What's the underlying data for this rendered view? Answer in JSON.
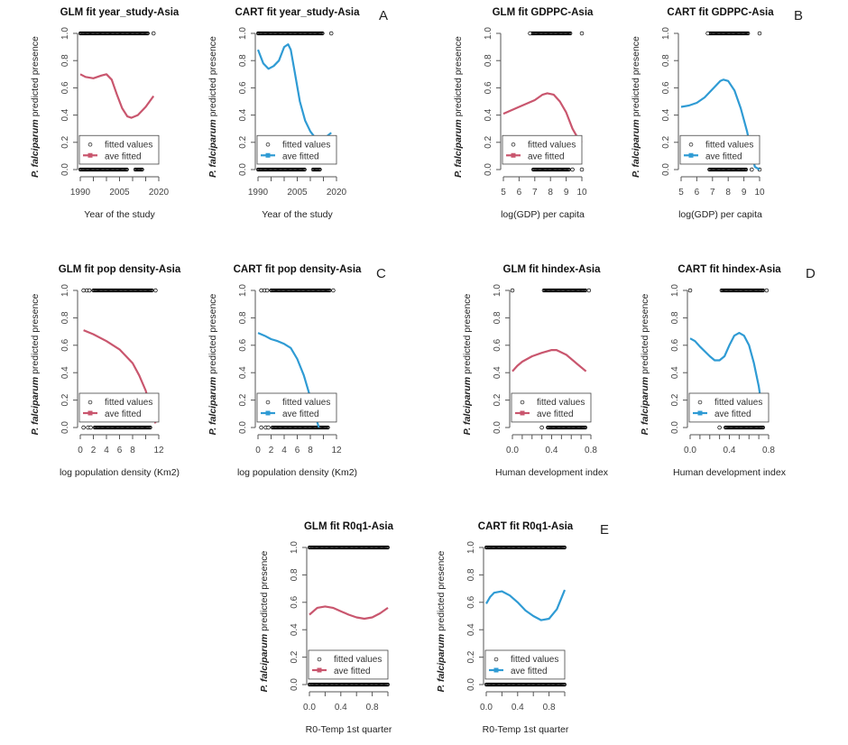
{
  "colors": {
    "glm": "#c9566e",
    "cart": "#2f9bd4",
    "points": "#000000"
  },
  "ylabel": {
    "species": "P. falciparum",
    "rest": " predicted presence"
  },
  "yticks": [
    0.0,
    0.2,
    0.4,
    0.6,
    0.8,
    1.0
  ],
  "ytick_labels": [
    "0.0",
    "0.2",
    "0.4",
    "0.6",
    "0.8",
    "1.0"
  ],
  "legend": {
    "points_label": "fitted values",
    "line_label": "ave fitted"
  },
  "panel_letters": [
    "A",
    "B",
    "C",
    "D",
    "E"
  ],
  "chart_data": [
    {
      "type": "line",
      "title": "GLM fit year_study-Asia",
      "model": "glm",
      "xlabel": "Year of the study",
      "ylabel": "P. falciparum predicted presence",
      "ylim": [
        0,
        1
      ],
      "xticks": [
        1990,
        1995,
        2000,
        2005,
        2010,
        2015,
        2020
      ],
      "xtick_labels": [
        "1990",
        "",
        "",
        "2005",
        "",
        "",
        "2020"
      ],
      "curve": [
        [
          1990,
          0.7
        ],
        [
          1992,
          0.68
        ],
        [
          1995,
          0.67
        ],
        [
          1998,
          0.69
        ],
        [
          2000,
          0.7
        ],
        [
          2002,
          0.66
        ],
        [
          2004,
          0.55
        ],
        [
          2006,
          0.45
        ],
        [
          2008,
          0.39
        ],
        [
          2009.5,
          0.38
        ],
        [
          2012,
          0.4
        ],
        [
          2015,
          0.46
        ],
        [
          2018,
          0.54
        ]
      ],
      "points_at_1": {
        "dense": [
          [
            1990,
            2016
          ]
        ],
        "single": [
          2018
        ]
      },
      "points_at_0": {
        "dense": [
          [
            1990,
            2008
          ],
          [
            2011,
            2014
          ]
        ],
        "single": []
      }
    },
    {
      "type": "line",
      "title": "CART fit year_study-Asia",
      "model": "cart",
      "xlabel": "Year of the study",
      "ylabel": "P. falciparum predicted presence",
      "ylim": [
        0,
        1
      ],
      "xticks": [
        1990,
        1995,
        2000,
        2005,
        2010,
        2015,
        2020
      ],
      "xtick_labels": [
        "1990",
        "",
        "",
        "2005",
        "",
        "",
        "2020"
      ],
      "curve": [
        [
          1990,
          0.88
        ],
        [
          1992,
          0.78
        ],
        [
          1994,
          0.74
        ],
        [
          1996,
          0.76
        ],
        [
          1998,
          0.8
        ],
        [
          2000,
          0.9
        ],
        [
          2001.5,
          0.92
        ],
        [
          2002.5,
          0.88
        ],
        [
          2004,
          0.72
        ],
        [
          2006,
          0.5
        ],
        [
          2008,
          0.36
        ],
        [
          2010,
          0.28
        ],
        [
          2012,
          0.23
        ],
        [
          2014,
          0.22
        ],
        [
          2016,
          0.24
        ],
        [
          2018,
          0.27
        ]
      ],
      "points_at_1": {
        "dense": [
          [
            1990,
            2015
          ]
        ],
        "single": [
          2018
        ]
      },
      "points_at_0": {
        "dense": [
          [
            1990,
            2008
          ],
          [
            2011,
            2014
          ]
        ],
        "single": []
      }
    },
    {
      "type": "line",
      "title": "GLM fit GDPPC-Asia",
      "model": "glm",
      "xlabel": "log(GDP) per capita",
      "ylabel": "P. falciparum predicted presence",
      "ylim": [
        0,
        1
      ],
      "xticks": [
        5,
        6,
        7,
        8,
        9,
        10
      ],
      "xtick_labels": [
        "5",
        "6",
        "7",
        "8",
        "9",
        "10"
      ],
      "curve": [
        [
          5,
          0.41
        ],
        [
          6,
          0.46
        ],
        [
          7,
          0.51
        ],
        [
          7.5,
          0.55
        ],
        [
          7.8,
          0.56
        ],
        [
          8.2,
          0.55
        ],
        [
          8.6,
          0.5
        ],
        [
          9,
          0.42
        ],
        [
          9.4,
          0.3
        ],
        [
          9.8,
          0.22
        ],
        [
          10,
          0.2
        ]
      ],
      "points_at_1": {
        "dense": [
          [
            6.8,
            9.3
          ]
        ],
        "single": [
          6.7,
          10
        ]
      },
      "points_at_0": {
        "dense": [
          [
            6.9,
            9.2
          ]
        ],
        "single": [
          9.4,
          10
        ]
      }
    },
    {
      "type": "line",
      "title": "CART fit GDPPC-Asia",
      "model": "cart",
      "xlabel": "log(GDP) per capita",
      "ylabel": "P. falciparum predicted presence",
      "ylim": [
        0,
        1
      ],
      "xticks": [
        5,
        6,
        7,
        8,
        9,
        10
      ],
      "xtick_labels": [
        "5",
        "6",
        "7",
        "8",
        "9",
        "10"
      ],
      "curve": [
        [
          5,
          0.46
        ],
        [
          5.5,
          0.47
        ],
        [
          6,
          0.49
        ],
        [
          6.5,
          0.53
        ],
        [
          7,
          0.59
        ],
        [
          7.5,
          0.65
        ],
        [
          7.7,
          0.66
        ],
        [
          8,
          0.65
        ],
        [
          8.4,
          0.58
        ],
        [
          8.8,
          0.45
        ],
        [
          9.2,
          0.28
        ],
        [
          9.5,
          0.12
        ],
        [
          9.7,
          0.02
        ],
        [
          10,
          0.0
        ]
      ],
      "points_at_1": {
        "dense": [
          [
            6.8,
            9.3
          ]
        ],
        "single": [
          6.7,
          10
        ]
      },
      "points_at_0": {
        "dense": [
          [
            6.8,
            9.2
          ]
        ],
        "single": [
          9.5,
          10
        ]
      }
    },
    {
      "type": "line",
      "title": "GLM fit pop density-Asia",
      "model": "glm",
      "xlabel": "log population density (Km2)",
      "ylabel": "P. falciparum predicted presence",
      "ylim": [
        0,
        1
      ],
      "xticks": [
        0,
        2,
        4,
        6,
        8,
        10,
        12
      ],
      "xtick_labels": [
        "0",
        "2",
        "4",
        "6",
        "8",
        "",
        "12"
      ],
      "curve": [
        [
          0.5,
          0.71
        ],
        [
          2,
          0.68
        ],
        [
          4,
          0.63
        ],
        [
          6,
          0.57
        ],
        [
          8,
          0.47
        ],
        [
          9,
          0.38
        ],
        [
          10,
          0.27
        ],
        [
          11,
          0.1
        ],
        [
          11.5,
          0.03
        ]
      ],
      "points_at_1": {
        "dense": [
          [
            2,
            11
          ]
        ],
        "single": [
          0.5,
          1,
          1.4,
          11.5
        ]
      },
      "points_at_0": {
        "dense": [
          [
            2.2,
            10.8
          ]
        ],
        "single": [
          0.5,
          1.2,
          1.6
        ]
      }
    },
    {
      "type": "line",
      "title": "CART fit pop density-Asia",
      "model": "cart",
      "xlabel": "log population density (Km2)",
      "ylabel": "P. falciparum predicted presence",
      "ylim": [
        0,
        1
      ],
      "xticks": [
        0,
        2,
        4,
        6,
        8,
        10,
        12
      ],
      "xtick_labels": [
        "0",
        "2",
        "4",
        "6",
        "8",
        "",
        "12"
      ],
      "curve": [
        [
          0,
          0.69
        ],
        [
          1,
          0.67
        ],
        [
          2,
          0.645
        ],
        [
          3,
          0.63
        ],
        [
          4,
          0.61
        ],
        [
          5,
          0.58
        ],
        [
          6,
          0.5
        ],
        [
          7,
          0.38
        ],
        [
          8,
          0.22
        ],
        [
          8.7,
          0.1
        ],
        [
          9.3,
          0.0
        ]
      ],
      "points_at_1": {
        "dense": [
          [
            2,
            11
          ]
        ],
        "single": [
          0.5,
          1,
          1.4,
          11.5
        ]
      },
      "points_at_0": {
        "dense": [
          [
            2.2,
            10.8
          ]
        ],
        "single": [
          0.5,
          1.2,
          1.6
        ]
      }
    },
    {
      "type": "line",
      "title": "GLM fit hindex-Asia",
      "model": "glm",
      "xlabel": "Human development index",
      "ylabel": "P. falciparum predicted presence",
      "ylim": [
        0,
        1
      ],
      "xticks": [
        0,
        0.1,
        0.2,
        0.3,
        0.4,
        0.5,
        0.6,
        0.7,
        0.8
      ],
      "xtick_labels": [
        "0.0",
        "",
        "",
        "",
        "0.4",
        "",
        "",
        "",
        "0.8"
      ],
      "curve": [
        [
          0,
          0.41
        ],
        [
          0.05,
          0.45
        ],
        [
          0.1,
          0.48
        ],
        [
          0.2,
          0.52
        ],
        [
          0.3,
          0.545
        ],
        [
          0.4,
          0.565
        ],
        [
          0.45,
          0.565
        ],
        [
          0.55,
          0.53
        ],
        [
          0.65,
          0.47
        ],
        [
          0.75,
          0.41
        ]
      ],
      "points_at_1": {
        "dense": [
          [
            0.32,
            0.75
          ]
        ],
        "single": [
          0.0,
          0.78
        ]
      },
      "points_at_0": {
        "dense": [
          [
            0.36,
            0.75
          ]
        ],
        "single": [
          0.3
        ]
      }
    },
    {
      "type": "line",
      "title": "CART fit hindex-Asia",
      "model": "cart",
      "xlabel": "Human development index",
      "ylabel": "P. falciparum predicted presence",
      "ylim": [
        0,
        1
      ],
      "xticks": [
        0,
        0.1,
        0.2,
        0.3,
        0.4,
        0.5,
        0.6,
        0.7,
        0.8
      ],
      "xtick_labels": [
        "0.0",
        "",
        "",
        "",
        "0.4",
        "",
        "",
        "",
        "0.8"
      ],
      "curve": [
        [
          0,
          0.65
        ],
        [
          0.05,
          0.63
        ],
        [
          0.1,
          0.59
        ],
        [
          0.2,
          0.52
        ],
        [
          0.25,
          0.49
        ],
        [
          0.3,
          0.49
        ],
        [
          0.35,
          0.52
        ],
        [
          0.4,
          0.6
        ],
        [
          0.45,
          0.67
        ],
        [
          0.5,
          0.69
        ],
        [
          0.55,
          0.67
        ],
        [
          0.6,
          0.6
        ],
        [
          0.65,
          0.47
        ],
        [
          0.7,
          0.3
        ],
        [
          0.73,
          0.15
        ],
        [
          0.75,
          0.05
        ]
      ],
      "points_at_1": {
        "dense": [
          [
            0.32,
            0.75
          ]
        ],
        "single": [
          0.0,
          0.78
        ]
      },
      "points_at_0": {
        "dense": [
          [
            0.36,
            0.75
          ]
        ],
        "single": [
          0.3
        ]
      }
    },
    {
      "type": "line",
      "title": "GLM fit R0q1-Asia",
      "model": "glm",
      "xlabel": "R0-Temp 1st quarter",
      "ylabel": "P. falciparum predicted presence",
      "ylim": [
        0,
        1
      ],
      "xticks": [
        0,
        0.2,
        0.4,
        0.6,
        0.8,
        1.0
      ],
      "xtick_labels": [
        "0.0",
        "",
        "0.4",
        "",
        "0.8",
        ""
      ],
      "curve": [
        [
          0,
          0.51
        ],
        [
          0.1,
          0.56
        ],
        [
          0.2,
          0.57
        ],
        [
          0.3,
          0.56
        ],
        [
          0.4,
          0.535
        ],
        [
          0.5,
          0.51
        ],
        [
          0.6,
          0.49
        ],
        [
          0.7,
          0.48
        ],
        [
          0.8,
          0.49
        ],
        [
          0.9,
          0.52
        ],
        [
          1.0,
          0.56
        ]
      ],
      "points_at_1": {
        "dense": [
          [
            0,
            1
          ]
        ],
        "single": []
      },
      "points_at_0": {
        "dense": [
          [
            0,
            1
          ]
        ],
        "single": []
      }
    },
    {
      "type": "line",
      "title": "CART fit R0q1-Asia",
      "model": "cart",
      "xlabel": "R0-Temp 1st quarter",
      "ylabel": "P. falciparum predicted presence",
      "ylim": [
        0,
        1
      ],
      "xticks": [
        0,
        0.2,
        0.4,
        0.6,
        0.8,
        1.0
      ],
      "xtick_labels": [
        "0.0",
        "",
        "0.4",
        "",
        "0.8",
        ""
      ],
      "curve": [
        [
          0,
          0.59
        ],
        [
          0.05,
          0.64
        ],
        [
          0.1,
          0.67
        ],
        [
          0.2,
          0.68
        ],
        [
          0.3,
          0.65
        ],
        [
          0.4,
          0.6
        ],
        [
          0.5,
          0.54
        ],
        [
          0.6,
          0.5
        ],
        [
          0.7,
          0.47
        ],
        [
          0.8,
          0.48
        ],
        [
          0.9,
          0.55
        ],
        [
          1.0,
          0.69
        ]
      ],
      "points_at_1": {
        "dense": [
          [
            0,
            1
          ]
        ],
        "single": []
      },
      "points_at_0": {
        "dense": [
          [
            0,
            1
          ]
        ],
        "single": []
      }
    }
  ]
}
